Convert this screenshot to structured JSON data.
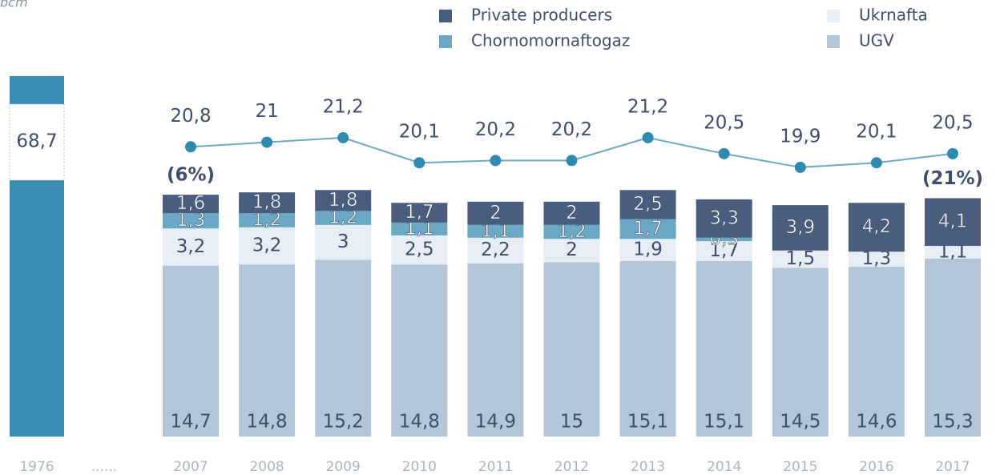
{
  "chart_data": {
    "type": "bar",
    "unit": "bcm",
    "categories": [
      "2007",
      "2008",
      "2009",
      "2010",
      "2011",
      "2012",
      "2013",
      "2014",
      "2015",
      "2016",
      "2017"
    ],
    "stacked": true,
    "series": [
      {
        "name": "UGV",
        "color": "#b3c6d8",
        "values": [
          14.7,
          14.8,
          15.2,
          14.8,
          14.9,
          15,
          15.1,
          15.1,
          14.5,
          14.6,
          15.3
        ],
        "value_labels": [
          "14,7",
          "14,8",
          "15,2",
          "14,8",
          "14,9",
          "15",
          "15,1",
          "15,1",
          "14,5",
          "14,6",
          "15,3"
        ]
      },
      {
        "name": "Ukrnafta",
        "color": "#e6edf4",
        "values": [
          3.2,
          3.2,
          3,
          2.5,
          2.2,
          2,
          1.9,
          1.7,
          1.5,
          1.3,
          1.1
        ],
        "value_labels": [
          "3,2",
          "3,2",
          "3",
          "2,5",
          "2,2",
          "2",
          "1,9",
          "1,7",
          "1,5",
          "1,3",
          "1,1"
        ]
      },
      {
        "name": "Chornomornaftogaz",
        "color": "#6aa8c4",
        "values": [
          1.3,
          1.2,
          1.2,
          1.1,
          1.1,
          1.2,
          1.7,
          0.3,
          null,
          null,
          null
        ],
        "value_labels": [
          "1,3",
          "1,2",
          "1,2",
          "1,1",
          "1,1",
          "1,2",
          "1,7",
          "0,3",
          null,
          null,
          null
        ]
      },
      {
        "name": "Private producers",
        "color": "#4a5d7e",
        "values": [
          1.6,
          1.8,
          1.8,
          1.7,
          2,
          2,
          2.5,
          3.3,
          3.9,
          4.2,
          4.1
        ],
        "value_labels": [
          "1,6",
          "1,8",
          "1,8",
          "1,7",
          "2",
          "2",
          "2,5",
          "3,3",
          "3,9",
          "4,2",
          "4,1"
        ]
      }
    ],
    "total_line": {
      "color": "#6aa8c4",
      "marker_color": "#2f8ab0",
      "axis": "y2",
      "values": [
        20.8,
        21,
        21.2,
        20.1,
        20.2,
        20.2,
        21.2,
        20.5,
        19.9,
        20.1,
        20.5
      ],
      "value_labels": [
        "20,8",
        "21",
        "21,2",
        "20,1",
        "20,2",
        "20,2",
        "21,2",
        "20,5",
        "19,9",
        "20,1",
        "20,5"
      ]
    },
    "past_bar": {
      "category": "1976",
      "value": 68.7,
      "value_label": "68,7",
      "color": "#3a8db0"
    },
    "separator_label": "......",
    "annotations": [
      {
        "category_index": 0,
        "text": "(6%)"
      },
      {
        "category_index": 10,
        "text": "(21%)"
      }
    ],
    "ylim": [
      0,
      31
    ],
    "y2lim": [
      8.1,
      23.9
    ]
  }
}
